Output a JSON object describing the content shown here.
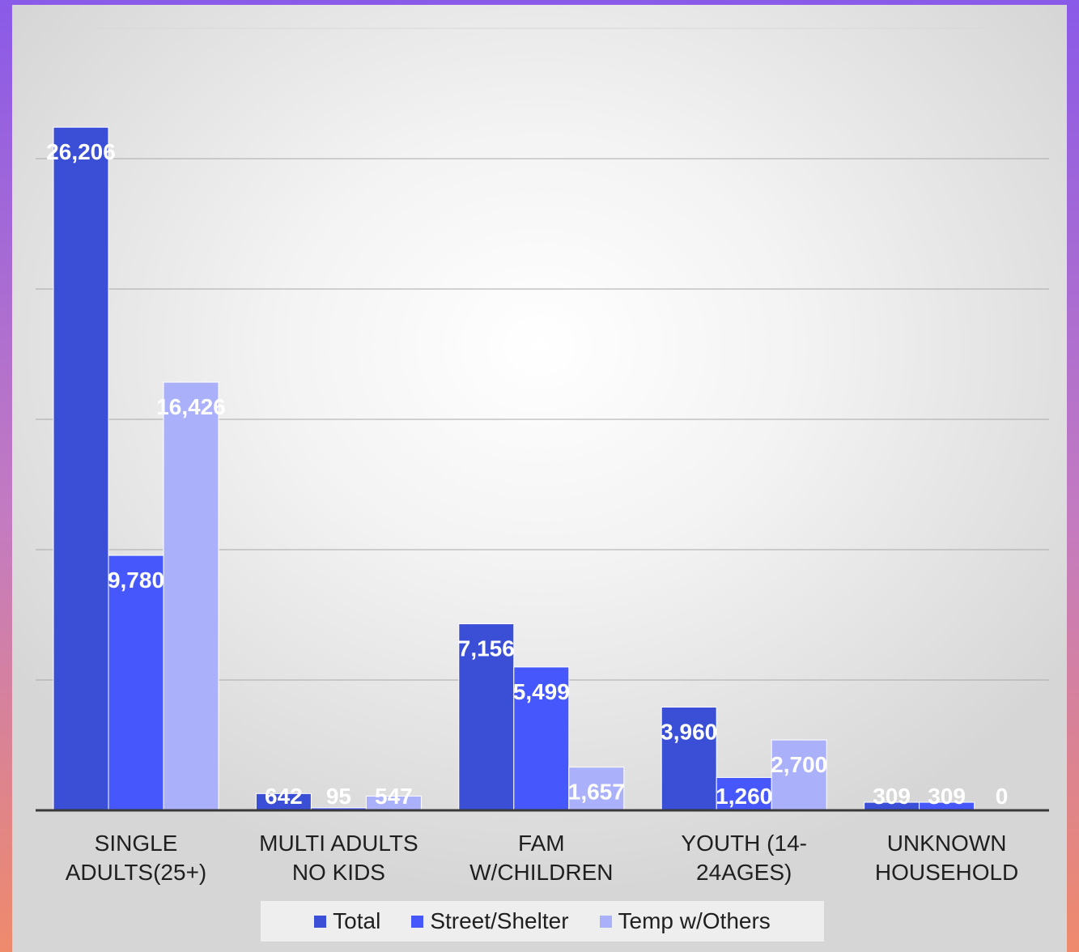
{
  "chart_data": {
    "type": "bar",
    "categories": [
      "SINGLE ADULTS(25+)",
      "MULTI ADULTS NO KIDS",
      "FAM W/CHILDREN",
      "YOUTH (14-24AGES)",
      "UNKNOWN HOUSEHOLD"
    ],
    "category_lines": [
      [
        "SINGLE",
        "ADULTS(25+)"
      ],
      [
        "MULTI ADULTS",
        "NO KIDS"
      ],
      [
        "FAM",
        "W/CHILDREN"
      ],
      [
        "YOUTH (14-",
        "24AGES)"
      ],
      [
        "UNKNOWN",
        "HOUSEHOLD"
      ]
    ],
    "series": [
      {
        "name": "Total",
        "values": [
          26206,
          642,
          7156,
          3960,
          309
        ],
        "color": "#3b4fd6",
        "labels": [
          "26,206",
          "642",
          "7,156",
          "3,960",
          "309"
        ]
      },
      {
        "name": "Street/Shelter",
        "values": [
          9780,
          95,
          5499,
          1260,
          309
        ],
        "color": "#4657fb",
        "labels": [
          "9,780",
          "95",
          "5,499",
          "1,260",
          "309"
        ]
      },
      {
        "name": "Temp w/Others",
        "values": [
          16426,
          547,
          1657,
          2700,
          0
        ],
        "color": "#abb0fb",
        "labels": [
          "16,426",
          "547",
          "1,657",
          "2,700",
          "0"
        ]
      }
    ],
    "ylim": [
      0,
      30000
    ],
    "grid": true,
    "legend_position": "bottom"
  },
  "legend": {
    "items": [
      "Total",
      "Street/Shelter",
      "Temp w/Others"
    ]
  }
}
